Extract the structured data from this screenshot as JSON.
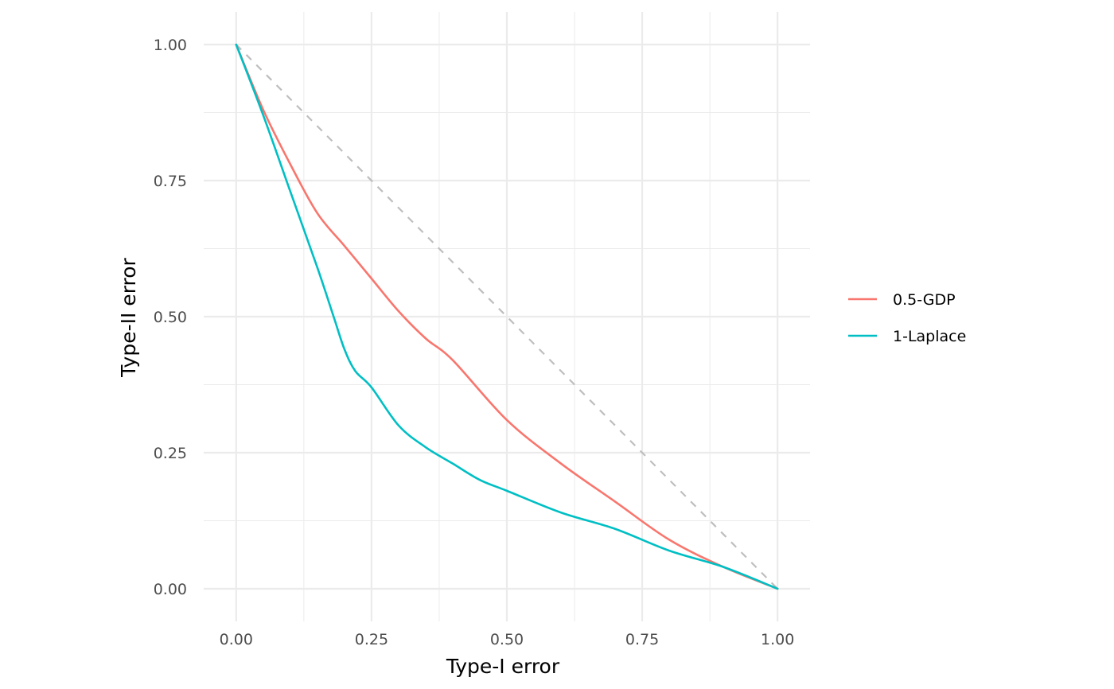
{
  "chart_data": {
    "type": "line",
    "title": "",
    "xlabel": "Type-I error",
    "ylabel": "Type-II error",
    "xlim": [
      -0.06,
      1.06
    ],
    "ylim": [
      -0.06,
      1.06
    ],
    "x_ticks": [
      0.0,
      0.25,
      0.5,
      0.75,
      1.0
    ],
    "x_tick_labels": [
      "0.00",
      "0.25",
      "0.50",
      "0.75",
      "1.00"
    ],
    "y_ticks": [
      0.0,
      0.25,
      0.5,
      0.75,
      1.0
    ],
    "y_tick_labels": [
      "0.00",
      "0.25",
      "0.50",
      "0.75",
      "1.00"
    ],
    "grid": true,
    "legend_position": "right",
    "reference_line": {
      "style": "dashed",
      "color": "#bebebe",
      "x": [
        0,
        1
      ],
      "y": [
        1,
        0
      ]
    },
    "series": [
      {
        "name": "0.5-GDP",
        "color": "#F8766D",
        "x": [
          0.0,
          0.05,
          0.1,
          0.15,
          0.2,
          0.25,
          0.3,
          0.35,
          0.4,
          0.5,
          0.6,
          0.7,
          0.8,
          0.9,
          1.0
        ],
        "y": [
          1.0,
          0.88,
          0.78,
          0.69,
          0.63,
          0.57,
          0.51,
          0.46,
          0.42,
          0.31,
          0.23,
          0.16,
          0.09,
          0.04,
          0.0
        ]
      },
      {
        "name": "1-Laplace",
        "color": "#00BFC4",
        "x": [
          0.0,
          0.05,
          0.1,
          0.15,
          0.18,
          0.2,
          0.22,
          0.25,
          0.3,
          0.35,
          0.4,
          0.45,
          0.5,
          0.6,
          0.7,
          0.8,
          0.9,
          1.0
        ],
        "y": [
          1.0,
          0.87,
          0.73,
          0.59,
          0.5,
          0.44,
          0.4,
          0.37,
          0.3,
          0.26,
          0.23,
          0.2,
          0.18,
          0.14,
          0.11,
          0.07,
          0.04,
          0.0
        ]
      }
    ]
  }
}
